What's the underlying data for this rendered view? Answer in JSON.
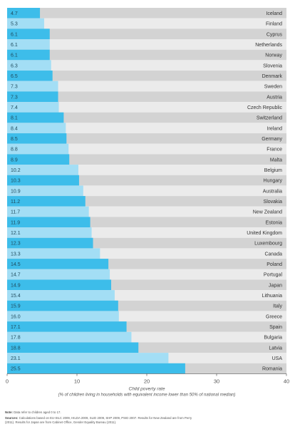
{
  "chart_data": {
    "type": "bar",
    "orientation": "horizontal",
    "categories": [
      "Iceland",
      "Finland",
      "Cyprus",
      "Netherlands",
      "Norway",
      "Slovenia",
      "Denmark",
      "Sweden",
      "Austria",
      "Czech Republic",
      "Switzerland",
      "Ireland",
      "Germany",
      "France",
      "Malta",
      "Belgium",
      "Hungary",
      "Australia",
      "Slovakia",
      "New Zealand",
      "Estonia",
      "United Kingdom",
      "Luxembourg",
      "Canada",
      "Poland",
      "Portugal",
      "Japan",
      "Lithuania",
      "Italy",
      "Greece",
      "Spain",
      "Bulgaria",
      "Latvia",
      "USA",
      "Romania"
    ],
    "values": [
      4.7,
      5.3,
      6.1,
      6.1,
      6.1,
      6.3,
      6.5,
      7.3,
      7.3,
      7.4,
      8.1,
      8.4,
      8.5,
      8.8,
      8.9,
      10.2,
      10.3,
      10.9,
      11.2,
      11.7,
      11.9,
      12.1,
      12.3,
      13.3,
      14.5,
      14.7,
      14.9,
      15.4,
      15.9,
      16.0,
      17.1,
      17.8,
      18.8,
      23.1,
      25.5
    ],
    "value_labels": [
      "4.7",
      "5.3",
      "6.1",
      "6.1",
      "6.1",
      "6.3",
      "6.5",
      "7.3",
      "7.3",
      "7.4",
      "8.1",
      "8.4",
      "8.5",
      "8.8",
      "8.9",
      "10.2",
      "10.3",
      "10.9",
      "11.2",
      "11.7",
      "11.9",
      "12.1",
      "12.3",
      "13.3",
      "14.5",
      "14.7",
      "14.9",
      "15.4",
      "15.9",
      "16.0",
      "17.1",
      "17.8",
      "18.8",
      "23.1",
      "25.5"
    ],
    "xlim": [
      0,
      40
    ],
    "xticks": [
      "0",
      "10",
      "20",
      "30",
      "40"
    ],
    "xlabel_line1": "Child poverty rate",
    "xlabel_line2": "(% of children living in households with equivalent income lower than 50% of national median)",
    "grid": false,
    "colors": {
      "bar_dark": "#3dbdea",
      "bar_light": "#a3def5",
      "row_dark": "#d3d3d3",
      "row_light": "#ebebeb",
      "value_text": "#1f4a5c",
      "country_text": "#333333"
    }
  },
  "notes": {
    "note_label": "Note:",
    "note_text": "Data refer to children aged 0 to 17.",
    "sources_label": "Sources:",
    "sources_text_1": "Calculations based on EU-SILC 2009, HILDA 2009, SLID 2009, SHP 2009, PSID 2007. Results for New Zealand are from Perry",
    "sources_text_2": "(2011). Results for Japan are from Cabinet Office, Gender Equality Bureau (2011)."
  }
}
